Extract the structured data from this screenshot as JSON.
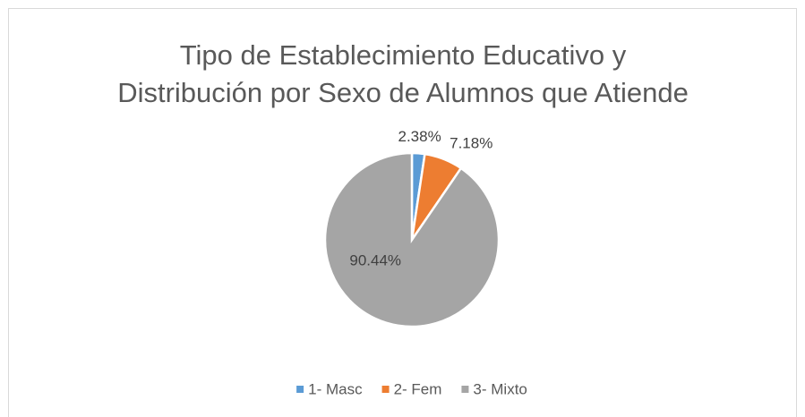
{
  "chart_data": {
    "type": "pie",
    "title": [
      "Tipo de Establecimiento Educativo y",
      "Distribución por Sexo de Alumnos que Atiende"
    ],
    "categories": [
      "1- Masc",
      "2- Fem",
      "3- Mixto"
    ],
    "values": [
      2.38,
      7.18,
      90.44
    ],
    "value_labels": [
      "2.38%",
      "7.18%",
      "90.44%"
    ],
    "colors": [
      "#5b9bd5",
      "#ed7d31",
      "#a5a5a5"
    ],
    "legend": "bottom"
  }
}
